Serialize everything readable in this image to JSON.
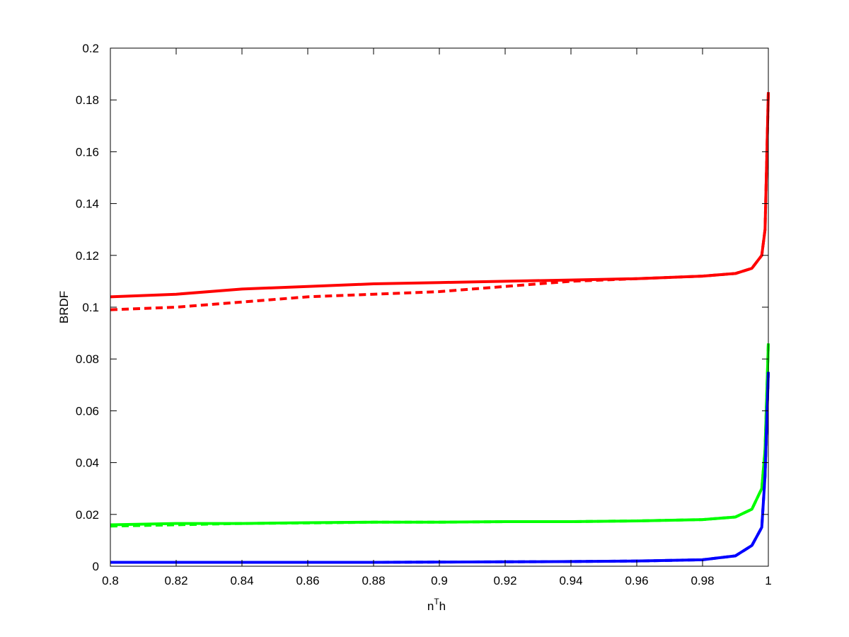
{
  "chart_data": {
    "type": "line",
    "x_label": [
      "n",
      "T",
      "h"
    ],
    "y_label": "BRDF",
    "x": [
      0.8,
      0.82,
      0.84,
      0.86,
      0.88,
      0.9,
      0.92,
      0.94,
      0.96,
      0.98,
      0.99,
      0.995,
      0.998,
      0.999,
      1.0
    ],
    "series": [
      {
        "color": "#ff0000",
        "dash": false,
        "values": [
          0.104,
          0.105,
          0.107,
          0.108,
          0.109,
          0.1095,
          0.11,
          0.1105,
          0.111,
          0.112,
          0.113,
          0.115,
          0.12,
          0.13,
          0.183
        ]
      },
      {
        "color": "#ff0000",
        "dash": true,
        "values": [
          0.099,
          0.1,
          0.102,
          0.104,
          0.105,
          0.106,
          0.108,
          0.11,
          0.111,
          0.112,
          0.113,
          0.115,
          0.12,
          0.13,
          0.183
        ]
      },
      {
        "color": "#00ff00",
        "dash": false,
        "values": [
          0.016,
          0.0165,
          0.0165,
          0.0168,
          0.017,
          0.017,
          0.0172,
          0.0172,
          0.0175,
          0.018,
          0.019,
          0.022,
          0.03,
          0.045,
          0.086
        ]
      },
      {
        "color": "#00ff00",
        "dash": true,
        "values": [
          0.0155,
          0.016,
          0.0165,
          0.0167,
          0.017,
          0.017,
          0.0172,
          0.0172,
          0.0175,
          0.018,
          0.019,
          0.022,
          0.03,
          0.045,
          0.086
        ]
      },
      {
        "color": "#0000ff",
        "dash": false,
        "values": [
          0.0015,
          0.0015,
          0.0015,
          0.0015,
          0.0015,
          0.0016,
          0.0017,
          0.0018,
          0.002,
          0.0025,
          0.004,
          0.008,
          0.015,
          0.035,
          0.075
        ]
      },
      {
        "color": "#0000ff",
        "dash": true,
        "values": [
          0.0015,
          0.0015,
          0.0015,
          0.0015,
          0.0015,
          0.0016,
          0.0017,
          0.0018,
          0.002,
          0.0025,
          0.004,
          0.008,
          0.015,
          0.035,
          0.075
        ]
      }
    ],
    "xlim": [
      0.8,
      1
    ],
    "xticks": [
      0.8,
      0.82,
      0.84,
      0.86,
      0.88,
      0.9,
      0.92,
      0.94,
      0.96,
      0.98,
      1
    ],
    "ylim": [
      0,
      0.2
    ],
    "yticks": [
      0,
      0.02,
      0.04,
      0.06,
      0.08,
      0.1,
      0.12,
      0.14,
      0.16,
      0.18,
      0.2
    ],
    "grid": false
  }
}
